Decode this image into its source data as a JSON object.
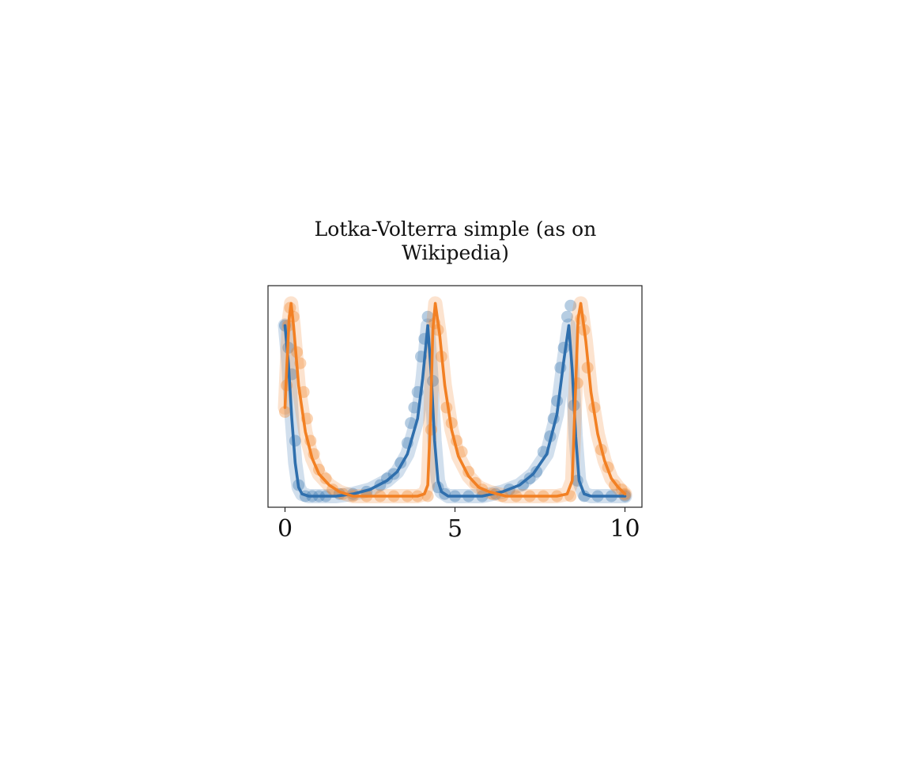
{
  "chart_data": {
    "type": "line",
    "title": "Lotka-Volterra simple (as on Wikipedia)",
    "title_lines": [
      "Lotka-Volterra simple (as on",
      "Wikipedia)"
    ],
    "xlabel": "",
    "ylabel": "",
    "xlim": [
      -0.5,
      10.5
    ],
    "ylim": [
      0,
      1
    ],
    "xticks": [
      0,
      5,
      10
    ],
    "xtick_labels": [
      "0",
      "5",
      "10"
    ],
    "yticks": [],
    "grid": false,
    "legend": "none",
    "series": [
      {
        "color": "#2f6fad",
        "line": [
          [
            0.0,
            0.82
          ],
          [
            0.1,
            0.65
          ],
          [
            0.2,
            0.4
          ],
          [
            0.3,
            0.2
          ],
          [
            0.4,
            0.09
          ],
          [
            0.5,
            0.06
          ],
          [
            0.7,
            0.05
          ],
          [
            1.0,
            0.05
          ],
          [
            1.5,
            0.05
          ],
          [
            2.0,
            0.06
          ],
          [
            2.5,
            0.08
          ],
          [
            3.0,
            0.12
          ],
          [
            3.3,
            0.16
          ],
          [
            3.6,
            0.24
          ],
          [
            3.9,
            0.4
          ],
          [
            4.05,
            0.58
          ],
          [
            4.2,
            0.82
          ],
          [
            4.3,
            0.6
          ],
          [
            4.4,
            0.3
          ],
          [
            4.5,
            0.12
          ],
          [
            4.6,
            0.07
          ],
          [
            4.8,
            0.05
          ],
          [
            5.2,
            0.05
          ],
          [
            5.8,
            0.05
          ],
          [
            6.4,
            0.07
          ],
          [
            6.9,
            0.1
          ],
          [
            7.3,
            0.15
          ],
          [
            7.7,
            0.24
          ],
          [
            8.0,
            0.42
          ],
          [
            8.2,
            0.66
          ],
          [
            8.35,
            0.82
          ],
          [
            8.45,
            0.62
          ],
          [
            8.55,
            0.32
          ],
          [
            8.65,
            0.12
          ],
          [
            8.8,
            0.06
          ],
          [
            9.0,
            0.05
          ],
          [
            9.5,
            0.05
          ],
          [
            10.0,
            0.05
          ]
        ],
        "points": [
          [
            0.0,
            0.82
          ],
          [
            0.1,
            0.72
          ],
          [
            0.2,
            0.6
          ],
          [
            0.3,
            0.3
          ],
          [
            0.4,
            0.1
          ],
          [
            0.6,
            0.05
          ],
          [
            0.8,
            0.05
          ],
          [
            1.0,
            0.05
          ],
          [
            1.2,
            0.05
          ],
          [
            1.6,
            0.06
          ],
          [
            2.0,
            0.06
          ],
          [
            2.4,
            0.07
          ],
          [
            2.8,
            0.1
          ],
          [
            3.0,
            0.13
          ],
          [
            3.2,
            0.15
          ],
          [
            3.4,
            0.2
          ],
          [
            3.6,
            0.29
          ],
          [
            3.7,
            0.38
          ],
          [
            3.8,
            0.45
          ],
          [
            3.9,
            0.52
          ],
          [
            4.0,
            0.68
          ],
          [
            4.1,
            0.76
          ],
          [
            4.2,
            0.86
          ],
          [
            4.35,
            0.57
          ],
          [
            4.5,
            0.09
          ],
          [
            4.7,
            0.06
          ],
          [
            5.0,
            0.05
          ],
          [
            5.4,
            0.05
          ],
          [
            5.8,
            0.05
          ],
          [
            6.2,
            0.06
          ],
          [
            6.6,
            0.08
          ],
          [
            7.0,
            0.1
          ],
          [
            7.2,
            0.13
          ],
          [
            7.4,
            0.16
          ],
          [
            7.6,
            0.25
          ],
          [
            7.8,
            0.32
          ],
          [
            7.9,
            0.4
          ],
          [
            8.0,
            0.48
          ],
          [
            8.1,
            0.63
          ],
          [
            8.2,
            0.72
          ],
          [
            8.3,
            0.86
          ],
          [
            8.4,
            0.91
          ],
          [
            8.5,
            0.46
          ],
          [
            8.6,
            0.12
          ],
          [
            8.8,
            0.05
          ],
          [
            9.2,
            0.05
          ],
          [
            9.6,
            0.05
          ],
          [
            10.0,
            0.05
          ]
        ]
      },
      {
        "color": "#f28023",
        "line": [
          [
            0.0,
            0.45
          ],
          [
            0.05,
            0.62
          ],
          [
            0.12,
            0.85
          ],
          [
            0.18,
            0.92
          ],
          [
            0.25,
            0.82
          ],
          [
            0.4,
            0.55
          ],
          [
            0.6,
            0.34
          ],
          [
            0.8,
            0.22
          ],
          [
            1.0,
            0.15
          ],
          [
            1.3,
            0.1
          ],
          [
            1.6,
            0.07
          ],
          [
            2.0,
            0.05
          ],
          [
            2.5,
            0.05
          ],
          [
            3.0,
            0.05
          ],
          [
            3.5,
            0.05
          ],
          [
            3.9,
            0.05
          ],
          [
            4.1,
            0.06
          ],
          [
            4.2,
            0.1
          ],
          [
            4.28,
            0.4
          ],
          [
            4.35,
            0.8
          ],
          [
            4.42,
            0.92
          ],
          [
            4.55,
            0.78
          ],
          [
            4.7,
            0.55
          ],
          [
            4.9,
            0.35
          ],
          [
            5.1,
            0.23
          ],
          [
            5.4,
            0.14
          ],
          [
            5.7,
            0.09
          ],
          [
            6.0,
            0.07
          ],
          [
            6.5,
            0.05
          ],
          [
            7.0,
            0.05
          ],
          [
            7.5,
            0.05
          ],
          [
            8.0,
            0.05
          ],
          [
            8.3,
            0.06
          ],
          [
            8.45,
            0.12
          ],
          [
            8.55,
            0.55
          ],
          [
            8.62,
            0.85
          ],
          [
            8.7,
            0.92
          ],
          [
            8.85,
            0.75
          ],
          [
            9.0,
            0.52
          ],
          [
            9.2,
            0.33
          ],
          [
            9.4,
            0.21
          ],
          [
            9.6,
            0.13
          ],
          [
            9.8,
            0.09
          ],
          [
            10.0,
            0.06
          ]
        ],
        "points": [
          [
            0.0,
            0.43
          ],
          [
            0.05,
            0.55
          ],
          [
            0.1,
            0.82
          ],
          [
            0.15,
            0.9
          ],
          [
            0.25,
            0.86
          ],
          [
            0.35,
            0.7
          ],
          [
            0.45,
            0.65
          ],
          [
            0.55,
            0.52
          ],
          [
            0.65,
            0.4
          ],
          [
            0.75,
            0.3
          ],
          [
            0.85,
            0.24
          ],
          [
            1.0,
            0.17
          ],
          [
            1.2,
            0.13
          ],
          [
            1.4,
            0.08
          ],
          [
            1.7,
            0.06
          ],
          [
            2.0,
            0.05
          ],
          [
            2.4,
            0.05
          ],
          [
            2.8,
            0.05
          ],
          [
            3.2,
            0.05
          ],
          [
            3.6,
            0.05
          ],
          [
            3.9,
            0.05
          ],
          [
            4.2,
            0.05
          ],
          [
            4.3,
            0.35
          ],
          [
            4.4,
            0.83
          ],
          [
            4.5,
            0.8
          ],
          [
            4.6,
            0.68
          ],
          [
            4.75,
            0.45
          ],
          [
            4.9,
            0.38
          ],
          [
            5.05,
            0.3
          ],
          [
            5.2,
            0.25
          ],
          [
            5.4,
            0.16
          ],
          [
            5.6,
            0.11
          ],
          [
            5.8,
            0.08
          ],
          [
            6.1,
            0.06
          ],
          [
            6.4,
            0.05
          ],
          [
            6.8,
            0.05
          ],
          [
            7.2,
            0.05
          ],
          [
            7.6,
            0.05
          ],
          [
            8.0,
            0.05
          ],
          [
            8.4,
            0.05
          ],
          [
            8.6,
            0.56
          ],
          [
            8.7,
            0.85
          ],
          [
            8.8,
            0.8
          ],
          [
            8.9,
            0.63
          ],
          [
            9.1,
            0.45
          ],
          [
            9.3,
            0.26
          ],
          [
            9.5,
            0.18
          ],
          [
            9.7,
            0.1
          ],
          [
            9.9,
            0.08
          ],
          [
            10.0,
            0.06
          ]
        ]
      }
    ]
  }
}
